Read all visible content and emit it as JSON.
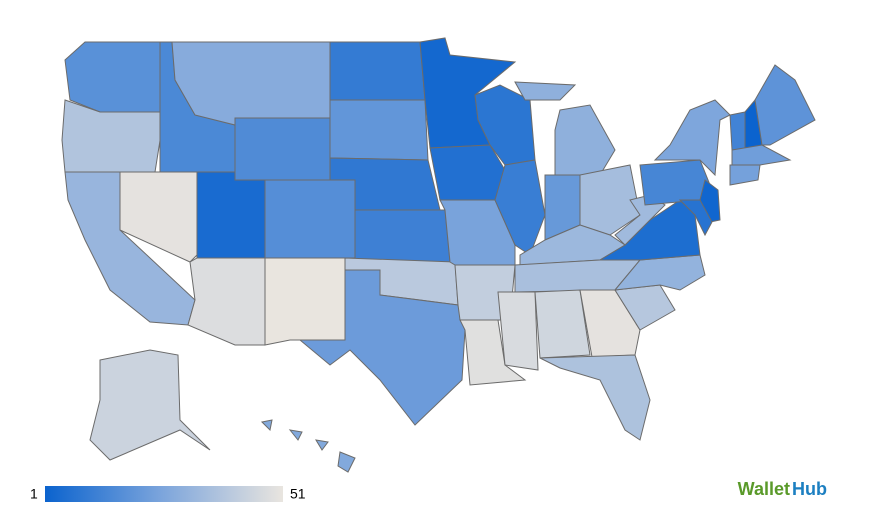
{
  "map": {
    "values": [
      18,
      38,
      32,
      15,
      50,
      28,
      16,
      4,
      17,
      48,
      51,
      10,
      20,
      9,
      12,
      40,
      22,
      3,
      6,
      25,
      42,
      49,
      8,
      11,
      30,
      21,
      35,
      33,
      36,
      47,
      45,
      50,
      37,
      39,
      31,
      5,
      34,
      14,
      26,
      2,
      7,
      13,
      1,
      19,
      23,
      24,
      44,
      27
    ],
    "legend": {
      "min": 1,
      "max": 51,
      "colors": [
        "#0b63ce",
        "#7ea6dc",
        "#e9e5df"
      ]
    },
    "border_color": "#6b6b6b"
  },
  "logo": {
    "left": "Wallet",
    "right": "Hub"
  }
}
